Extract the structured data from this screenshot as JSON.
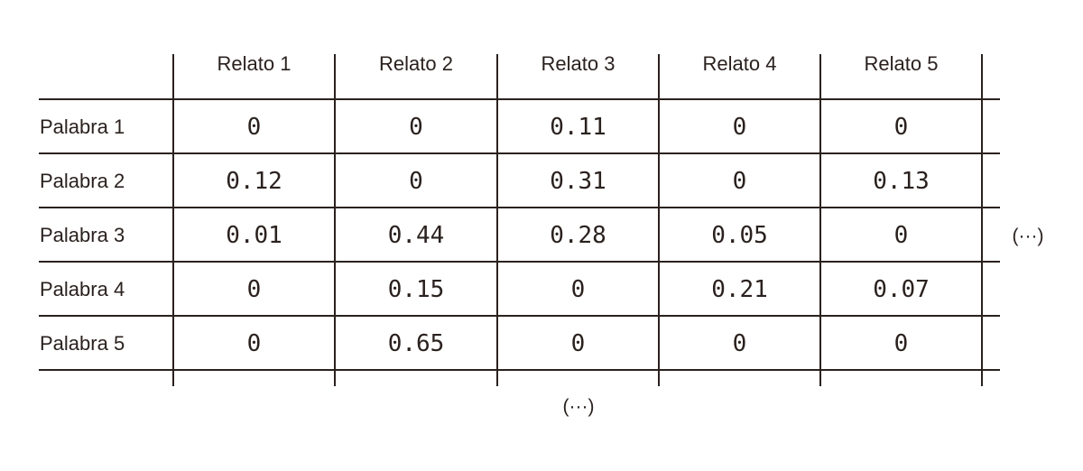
{
  "table": {
    "columns": [
      "Relato 1",
      "Relato 2",
      "Relato 3",
      "Relato 4",
      "Relato 5"
    ],
    "rows": [
      {
        "label": "Palabra 1",
        "values": [
          "0",
          "0",
          "0.11",
          "0",
          "0"
        ]
      },
      {
        "label": "Palabra 2",
        "values": [
          "0.12",
          "0",
          "0.31",
          "0",
          "0.13"
        ]
      },
      {
        "label": "Palabra 3",
        "values": [
          "0.01",
          "0.44",
          "0.28",
          "0.05",
          "0"
        ]
      },
      {
        "label": "Palabra 4",
        "values": [
          "0",
          "0.15",
          "0",
          "0.21",
          "0.07"
        ]
      },
      {
        "label": "Palabra 5",
        "values": [
          "0",
          "0.65",
          "0",
          "0",
          "0"
        ]
      }
    ],
    "more_columns": "(···)",
    "more_rows": "(···)"
  }
}
